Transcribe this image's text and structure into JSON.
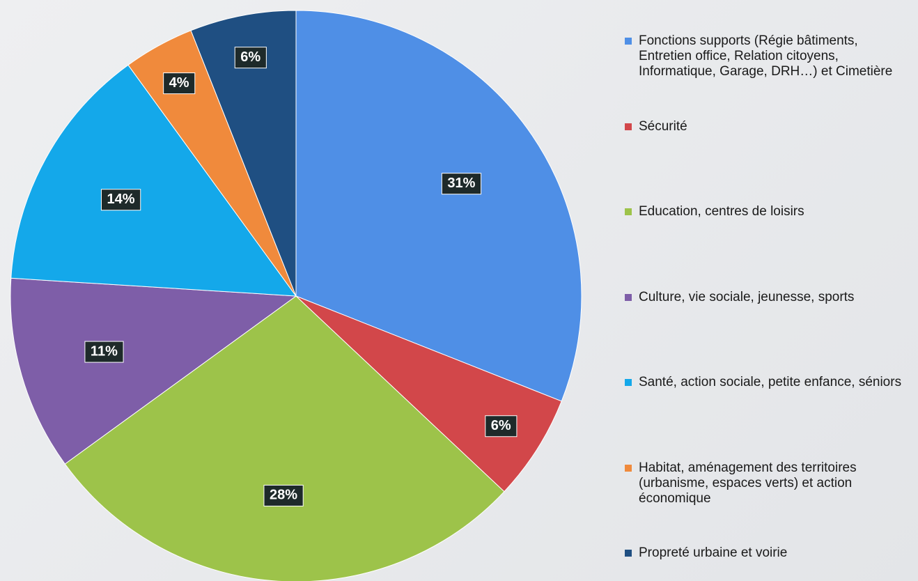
{
  "chart_data": {
    "type": "pie",
    "categories": [
      "Fonctions supports (Régie bâtiments, Entretien office, Relation citoyens, Informatique, Garage, DRH…) et Cimetière",
      "Sécurité",
      "Education, centres de loisirs",
      "Culture, vie sociale, jeunesse, sports",
      "Santé, action sociale, petite enfance, séniors",
      "Habitat, aménagement des territoires (urbanisme, espaces verts) et action économique",
      "Propreté urbaine et voirie"
    ],
    "values": [
      31,
      6,
      28,
      11,
      14,
      4,
      6
    ],
    "value_labels": [
      "31%",
      "6%",
      "28%",
      "11%",
      "14%",
      "4%",
      "6%"
    ],
    "colors": [
      "#4f8fe6",
      "#d2474a",
      "#9dc34a",
      "#7e5ea8",
      "#14a8ea",
      "#f08a3c",
      "#1f4f82"
    ],
    "legend": "right"
  }
}
